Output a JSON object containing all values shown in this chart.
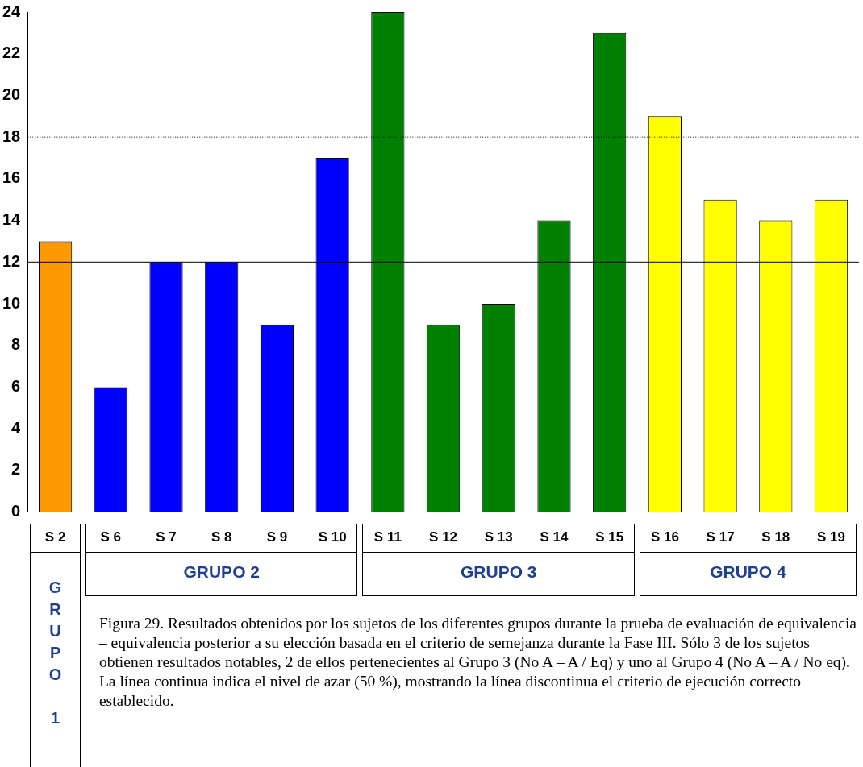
{
  "chart_data": {
    "type": "bar",
    "categories": [
      "S 2",
      "S 6",
      "S 7",
      "S 8",
      "S 9",
      "S 10",
      "S 11",
      "S 12",
      "S 13",
      "S 14",
      "S 15",
      "S 16",
      "S 17",
      "S 18",
      "S 19"
    ],
    "values": [
      13,
      6,
      12,
      12,
      9,
      17,
      24,
      9,
      10,
      14,
      23,
      19,
      15,
      14,
      15
    ],
    "colors": [
      "#ff9900",
      "#0000ff",
      "#0000ff",
      "#0000ff",
      "#0000ff",
      "#0000ff",
      "#008000",
      "#008000",
      "#008000",
      "#008000",
      "#008000",
      "#ffff00",
      "#ffff00",
      "#ffff00",
      "#ffff00"
    ],
    "ylim": [
      0,
      24
    ],
    "yticks": [
      0,
      2,
      4,
      6,
      8,
      10,
      12,
      14,
      16,
      18,
      20,
      22,
      24
    ],
    "grid": false,
    "legend": false,
    "ref_lines": [
      {
        "axis": "y",
        "value": 12,
        "line_style": "solid",
        "color": "#000000"
      },
      {
        "axis": "y",
        "value": 18,
        "line_style": "dotted",
        "color": "#000000"
      }
    ],
    "annotations": [
      "GRUPO 1",
      "GRUPO 2",
      "GRUPO 3",
      "GRUPO 4",
      "Figura 29. Resultados obtenidos por los sujetos de los diferentes grupos durante la prueba de evaluación de equivalencia – equivalencia posterior a su elección basada en el criterio de semejanza durante la Fase III. Sólo 3 de los sujetos obtienen resultados notables, 2 de ellos pertenecientes al Grupo 3 (No A – A / Eq) y uno al Grupo 4 (No A – A / No eq). La línea continua indica el nivel de azar (50 %), mostrando la línea discontinua el criterio de ejecución correcto establecido."
    ]
  }
}
